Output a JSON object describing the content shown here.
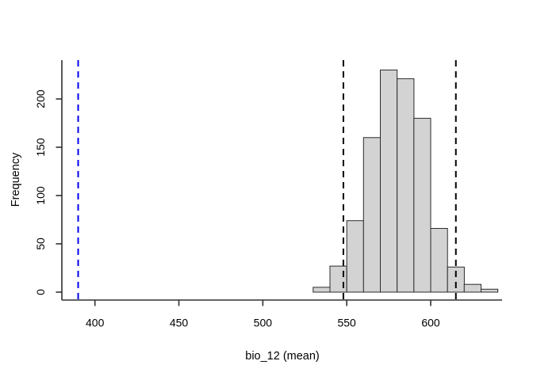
{
  "figure": {
    "background": "#ffffff",
    "text_color": "#000000",
    "axis_color": "#303030"
  },
  "chart_data": {
    "type": "bar",
    "subtype": "histogram",
    "title": "",
    "xlabel": "bio_12 (mean)",
    "ylabel": "Frequency",
    "bin_edges": [
      530,
      540,
      550,
      560,
      570,
      580,
      590,
      600,
      610,
      620,
      630,
      640
    ],
    "frequencies": [
      5,
      27,
      74,
      160,
      230,
      221,
      180,
      66,
      26,
      8,
      3
    ],
    "x_ticks": [
      400,
      450,
      500,
      550,
      600
    ],
    "y_ticks": [
      0,
      50,
      100,
      150,
      200
    ],
    "xlim": [
      381,
      643
    ],
    "ylim": [
      0,
      240
    ],
    "grid": false,
    "legend": false,
    "bar_fill": "#d3d3d3",
    "bar_border": "#2b2b2b",
    "vlines": [
      {
        "name": "observed-mean-line",
        "x": 390,
        "color": "#0000ee",
        "style": "dashed",
        "width": 2
      },
      {
        "name": "ci-lower-line",
        "x": 548,
        "color": "#000000",
        "style": "dashed",
        "width": 2
      },
      {
        "name": "ci-upper-line",
        "x": 615,
        "color": "#000000",
        "style": "dashed",
        "width": 2
      }
    ]
  }
}
